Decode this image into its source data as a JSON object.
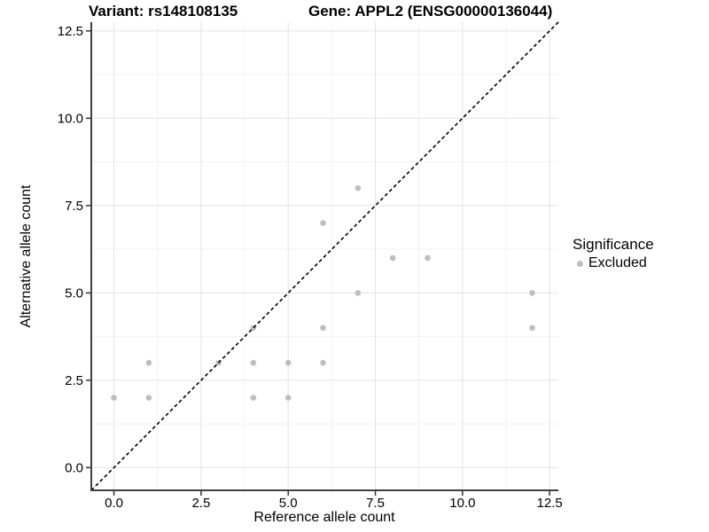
{
  "chart_data": {
    "type": "scatter",
    "title_left": "Variant: rs148108135",
    "title_right": "Gene: APPL2 (ENSG00000136044)",
    "xlabel": "Reference allele count",
    "ylabel": "Alternative allele count",
    "axis_range": [
      -0.65,
      12.75
    ],
    "tick_values": [
      0,
      2.5,
      5,
      7.5,
      10,
      12.5
    ],
    "tick_labels": [
      "0.0",
      "2.5",
      "5.0",
      "7.5",
      "10.0",
      "12.5"
    ],
    "minor_tick_values": [
      1.25,
      3.75,
      6.25,
      8.75,
      11.25
    ],
    "grid": true,
    "legend_position": "right",
    "series": [
      {
        "name": "Excluded",
        "color": "#bebebe",
        "points": [
          [
            0,
            2
          ],
          [
            1,
            2
          ],
          [
            1,
            3
          ],
          [
            3,
            3
          ],
          [
            4,
            2
          ],
          [
            4,
            3
          ],
          [
            4,
            4
          ],
          [
            5,
            2
          ],
          [
            5,
            3
          ],
          [
            6,
            3
          ],
          [
            6,
            4
          ],
          [
            6,
            7
          ],
          [
            7,
            5
          ],
          [
            7,
            8
          ],
          [
            8,
            6
          ],
          [
            9,
            6
          ],
          [
            12,
            4
          ],
          [
            12,
            5
          ]
        ]
      }
    ],
    "identity_line": {
      "slope": 1,
      "intercept": 0,
      "color": "#000000",
      "dash": "4,3"
    },
    "legend": {
      "title": "Significance",
      "items": [
        {
          "label": "Excluded",
          "color": "#bebebe"
        }
      ]
    },
    "colors": {
      "grid_major": "#e3e3e3",
      "grid_minor": "#f1f1f1",
      "spine": "#404040",
      "tick": "#333333",
      "tick_text": "#000000",
      "point": "#bebebe"
    }
  }
}
